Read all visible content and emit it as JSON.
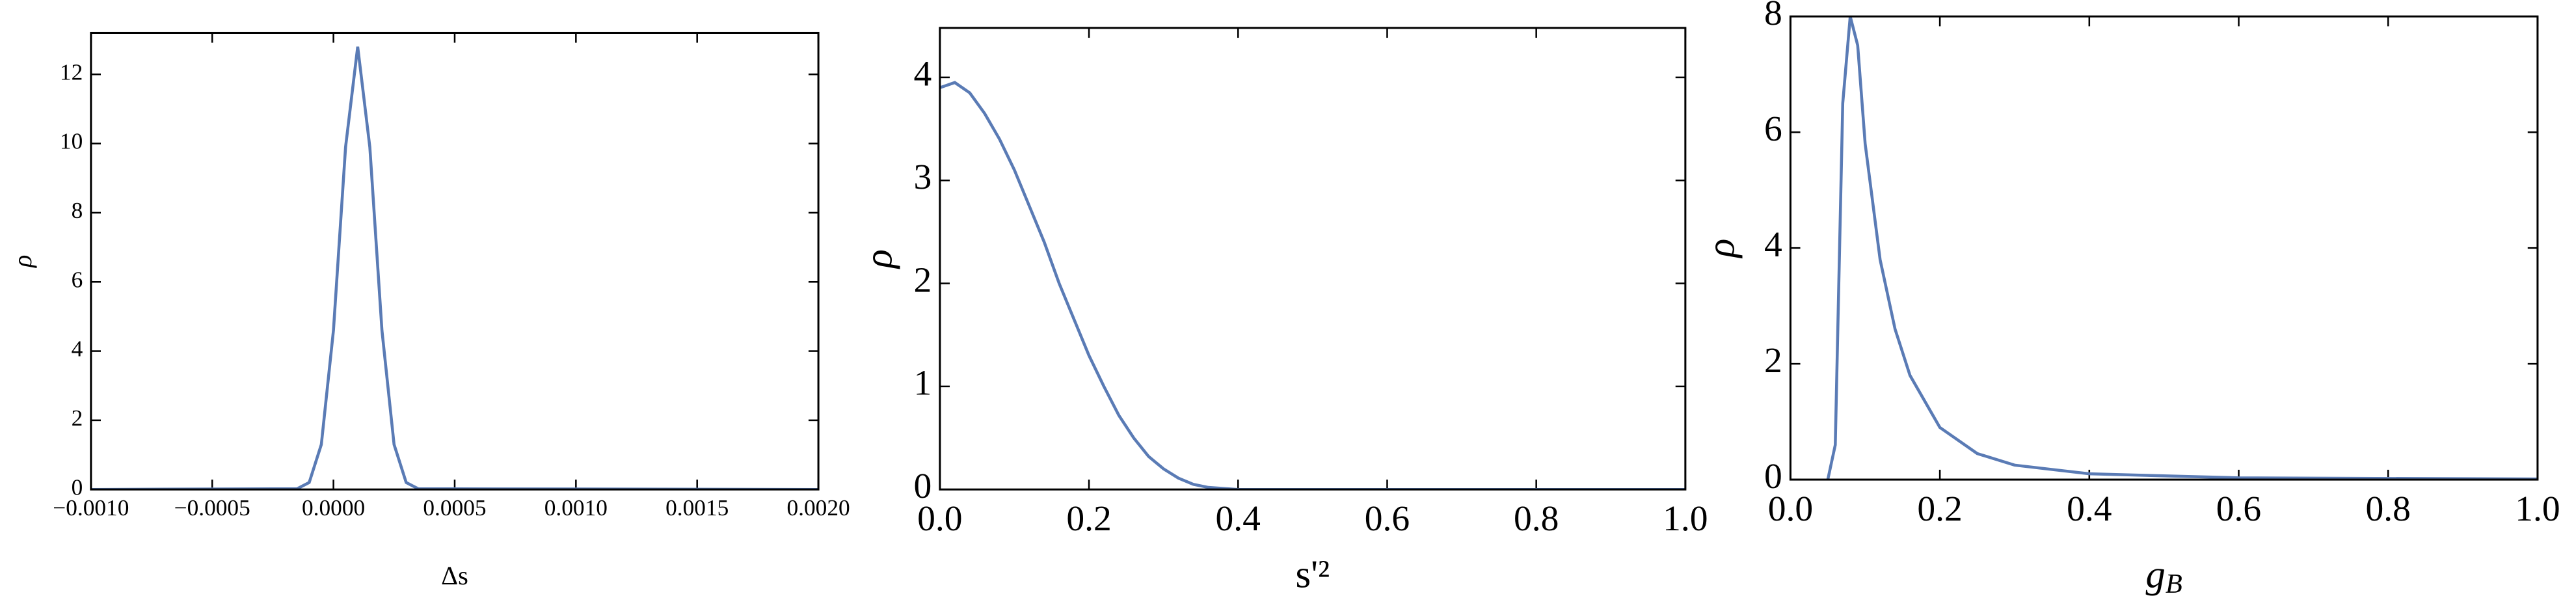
{
  "chart_data": [
    {
      "type": "line",
      "x_label": "Δs",
      "y_label": "ρ",
      "color": "#5a7bb5",
      "x": [
        -0.001,
        -0.00015,
        -0.0001,
        -5e-05,
        0,
        5e-05,
        0.0001,
        0.00015,
        0.0002,
        0.00025,
        0.0003,
        0.00035,
        0.002
      ],
      "values": [
        0,
        0.02,
        0.2,
        1.3,
        4.6,
        9.9,
        12.8,
        9.9,
        4.6,
        1.3,
        0.2,
        0.02,
        0
      ],
      "xlim": [
        -0.001,
        0.002
      ],
      "ylim": [
        0,
        13.2
      ],
      "xticks": [
        {
          "value": -0.001,
          "label": "−0.0010"
        },
        {
          "value": -0.0005,
          "label": "−0.0005"
        },
        {
          "value": 0,
          "label": "0.0000"
        },
        {
          "value": 0.0005,
          "label": "0.0005"
        },
        {
          "value": 0.001,
          "label": "0.0010"
        },
        {
          "value": 0.0015,
          "label": "0.0015"
        },
        {
          "value": 0.002,
          "label": "0.0020"
        }
      ],
      "yticks": [
        0,
        2,
        4,
        6,
        8,
        10,
        12
      ]
    },
    {
      "type": "line",
      "x_label": "s'²",
      "y_label": "ρ",
      "color": "#5a7bb5",
      "x": [
        0,
        0.02,
        0.04,
        0.06,
        0.08,
        0.1,
        0.12,
        0.14,
        0.16,
        0.18,
        0.2,
        0.22,
        0.24,
        0.26,
        0.28,
        0.3,
        0.32,
        0.34,
        0.36,
        0.4,
        1.0
      ],
      "values": [
        3.9,
        3.95,
        3.85,
        3.65,
        3.4,
        3.1,
        2.75,
        2.4,
        2.0,
        1.65,
        1.3,
        1.0,
        0.72,
        0.5,
        0.32,
        0.2,
        0.11,
        0.05,
        0.02,
        0,
        0
      ],
      "xlim": [
        0,
        1
      ],
      "ylim": [
        0,
        4.48
      ],
      "xticks": [
        {
          "value": 0,
          "label": "0.0"
        },
        0.2,
        0.4,
        0.6,
        0.8,
        {
          "value": 1,
          "label": "1.0"
        }
      ],
      "yticks": [
        0,
        1,
        2,
        3,
        4
      ]
    },
    {
      "type": "line",
      "x_label": {
        "text": "g",
        "sub": "B"
      },
      "y_label": "ρ",
      "color": "#5a7bb5",
      "x": [
        0.05,
        0.06,
        0.07,
        0.08,
        0.09,
        0.1,
        0.12,
        0.14,
        0.16,
        0.2,
        0.25,
        0.3,
        0.4,
        0.6,
        1.0
      ],
      "values": [
        0,
        0.6,
        6.5,
        8,
        7.5,
        5.8,
        3.8,
        2.6,
        1.8,
        0.9,
        0.45,
        0.25,
        0.1,
        0.03,
        0.01
      ],
      "xlim": [
        0,
        1
      ],
      "ylim": [
        0,
        8
      ],
      "xticks": [
        {
          "value": 0,
          "label": "0.0"
        },
        0.2,
        0.4,
        0.6,
        0.8,
        {
          "value": 1,
          "label": "1.0"
        }
      ],
      "yticks": [
        0,
        2,
        4,
        6,
        8
      ]
    }
  ]
}
